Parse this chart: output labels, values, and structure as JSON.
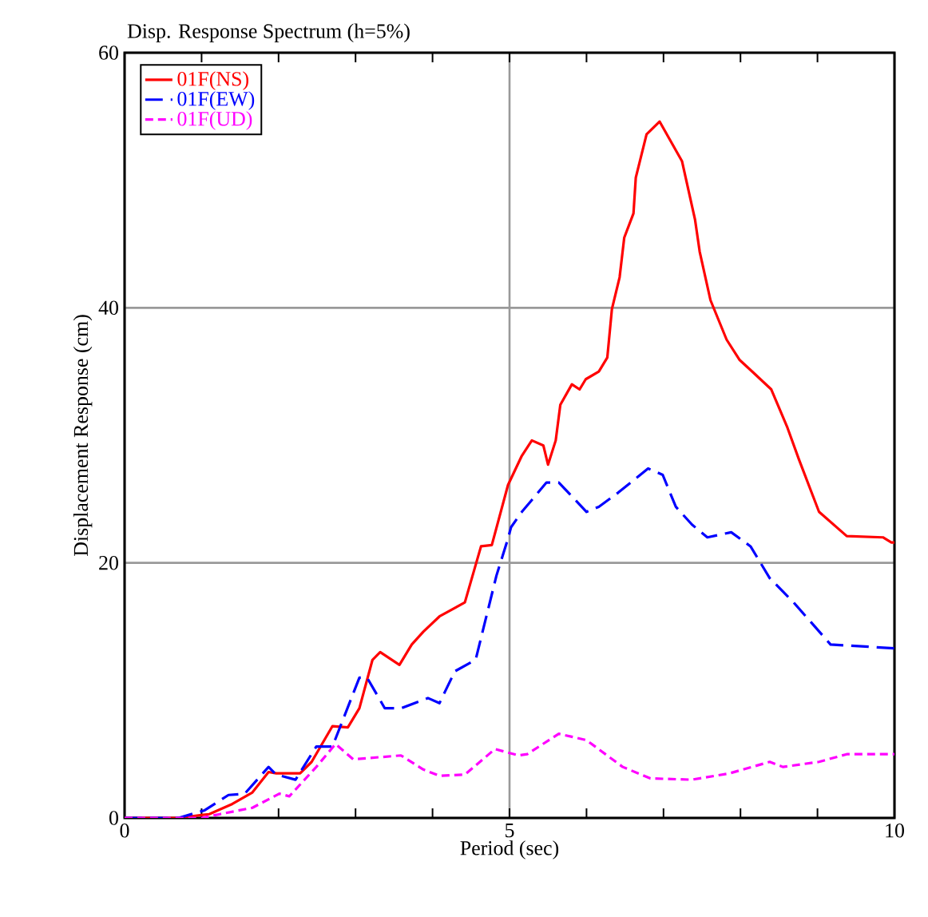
{
  "chart_data": {
    "type": "line",
    "title": "Disp. Response Spectrum (h=5%)",
    "xlabel": "Period (sec)",
    "ylabel": "Displacement Response (cm)",
    "xlim": [
      0,
      10
    ],
    "ylim": [
      0,
      60
    ],
    "xticks": [
      0,
      5,
      10
    ],
    "yticks": [
      0,
      20,
      40,
      60
    ],
    "grid": true,
    "legend": "top left",
    "marker": "none",
    "series": [
      {
        "name": "01F(NS)",
        "color": "#ff0000",
        "line_style": "solid",
        "x": [
          0,
          0.7,
          1.1,
          1.4,
          1.66,
          1.87,
          1.97,
          2.28,
          2.43,
          2.7,
          2.9,
          3.05,
          3.22,
          3.32,
          3.57,
          3.73,
          3.88,
          4.09,
          4.42,
          4.63,
          4.77,
          4.98,
          5.16,
          5.29,
          5.44,
          5.5,
          5.6,
          5.66,
          5.81,
          5.91,
          5.99,
          6.16,
          6.27,
          6.33,
          6.43,
          6.49,
          6.61,
          6.64,
          6.78,
          6.95,
          7.24,
          7.41,
          7.47,
          7.61,
          7.82,
          7.99,
          8.17,
          8.4,
          8.61,
          8.76,
          9.02,
          9.38,
          9.85,
          9.96,
          10
        ],
        "values": [
          0,
          0,
          0.3,
          1.1,
          2,
          3.6,
          3.5,
          3.5,
          4.4,
          7.2,
          7.1,
          8.6,
          12.4,
          13,
          12,
          13.6,
          14.6,
          15.8,
          16.9,
          21.3,
          21.4,
          26.1,
          28.4,
          29.6,
          29.2,
          27.7,
          29.6,
          32.4,
          34,
          33.6,
          34.4,
          35,
          36.1,
          39.9,
          42.4,
          45.5,
          47.4,
          50.2,
          53.6,
          54.6,
          51.5,
          46.9,
          44.4,
          40.6,
          37.5,
          35.9,
          34.9,
          33.6,
          30.6,
          28.1,
          24,
          22.1,
          22,
          21.6,
          21.6
        ]
      },
      {
        "name": "01F(EW)",
        "color": "#0000ff",
        "line_style": "dashed",
        "x": [
          0,
          0.7,
          1.04,
          1.35,
          1.56,
          1.87,
          1.97,
          2.22,
          2.49,
          2.7,
          3.05,
          3.15,
          3.38,
          3.59,
          3.94,
          4.09,
          4.29,
          4.56,
          4.83,
          4.98,
          5.02,
          5.16,
          5.48,
          5.64,
          6.0,
          6.16,
          6.41,
          6.8,
          6.99,
          7.16,
          7.37,
          7.57,
          7.88,
          8.13,
          8.38,
          8.69,
          9.17,
          10
        ],
        "values": [
          0,
          0,
          0.6,
          1.8,
          1.9,
          4,
          3.4,
          3,
          5.6,
          5.6,
          11,
          11,
          8.6,
          8.6,
          9.4,
          9,
          11.5,
          12.4,
          19,
          21.9,
          22.8,
          24,
          26.3,
          26.3,
          24,
          24.4,
          25.5,
          27.4,
          26.9,
          24.4,
          23,
          22,
          22.4,
          21.3,
          18.8,
          16.9,
          13.6,
          13.3
        ]
      },
      {
        "name": "01F(UD)",
        "color": "#ff00ff",
        "line_style": "dashed",
        "x": [
          0,
          1.0,
          1.24,
          1.66,
          2.01,
          2.14,
          2.49,
          2.74,
          2.97,
          3.59,
          3.88,
          4.09,
          4.42,
          4.81,
          5.12,
          5.23,
          5.64,
          6.0,
          6.47,
          6.83,
          7.37,
          7.86,
          8.38,
          8.55,
          9.02,
          9.38,
          9.94,
          10
        ],
        "values": [
          0,
          0,
          0.3,
          0.8,
          1.9,
          1.7,
          4,
          5.8,
          4.6,
          4.9,
          3.8,
          3.3,
          3.4,
          5.4,
          4.9,
          5,
          6.6,
          6.1,
          4,
          3.1,
          3,
          3.5,
          4.4,
          4,
          4.4,
          5,
          5,
          5
        ]
      }
    ]
  }
}
